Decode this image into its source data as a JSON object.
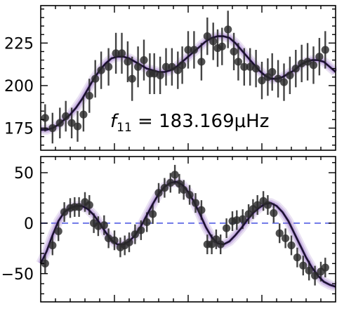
{
  "chart_data": [
    {
      "type": "scatter",
      "panel": "top",
      "annotation": {
        "symbol": "f",
        "subscript": "11",
        "text": " = 183.169μHz"
      },
      "xlim": [
        0,
        1
      ],
      "ylim": [
        162,
        247
      ],
      "ytick_values": [
        175,
        200,
        225
      ],
      "ytick_labels": [
        "175",
        "200",
        "225"
      ],
      "grid": false,
      "series": [
        {
          "kind": "points",
          "color": "#2b2b2b",
          "x": [
            0.015,
            0.04,
            0.065,
            0.085,
            0.105,
            0.125,
            0.145,
            0.165,
            0.185,
            0.205,
            0.23,
            0.255,
            0.275,
            0.295,
            0.31,
            0.33,
            0.35,
            0.37,
            0.385,
            0.405,
            0.425,
            0.445,
            0.465,
            0.48,
            0.5,
            0.52,
            0.545,
            0.565,
            0.585,
            0.6,
            0.615,
            0.635,
            0.655,
            0.67,
            0.69,
            0.71,
            0.73,
            0.75,
            0.77,
            0.785,
            0.805,
            0.825,
            0.845,
            0.865,
            0.885,
            0.905,
            0.925,
            0.945,
            0.965
          ],
          "y": [
            181,
            175,
            178,
            182,
            178,
            176,
            183,
            194,
            204,
            209,
            211,
            219,
            219,
            214,
            204,
            211,
            215,
            207,
            207,
            206,
            211,
            211,
            209,
            212,
            221,
            221,
            214,
            229,
            226,
            222,
            223,
            233,
            220,
            214,
            211,
            211,
            210,
            203,
            205,
            208,
            204,
            202,
            206,
            210,
            213,
            214,
            212,
            217,
            221
          ],
          "yerr": [
            8,
            9,
            9,
            9,
            9,
            9,
            10,
            10,
            11,
            11,
            11,
            12,
            12,
            12,
            13,
            12,
            12,
            12,
            12,
            11,
            11,
            11,
            11,
            11,
            11,
            11,
            11,
            11,
            11,
            11,
            11,
            11,
            11,
            11,
            11,
            11,
            11,
            11,
            11,
            11,
            11,
            11,
            11,
            11,
            11,
            11,
            11,
            11,
            11
          ]
        },
        {
          "kind": "model",
          "color": "#1b1030",
          "band_color": "#8a5fbf",
          "x": [
            0,
            0.02,
            0.04,
            0.06,
            0.08,
            0.1,
            0.12,
            0.14,
            0.16,
            0.18,
            0.2,
            0.22,
            0.24,
            0.26,
            0.28,
            0.3,
            0.32,
            0.34,
            0.36,
            0.38,
            0.4,
            0.42,
            0.44,
            0.46,
            0.48,
            0.5,
            0.52,
            0.54,
            0.56,
            0.58,
            0.6,
            0.62,
            0.64,
            0.66,
            0.68,
            0.7,
            0.72,
            0.74,
            0.76,
            0.78,
            0.8,
            0.82,
            0.84,
            0.86,
            0.88,
            0.9,
            0.92,
            0.94,
            0.96,
            0.98,
            1.0
          ],
          "y": [
            174,
            174,
            175,
            177,
            180,
            183,
            187,
            192,
            198,
            204,
            209,
            213,
            216,
            217,
            217,
            216,
            214,
            212,
            210,
            209,
            208,
            208,
            209,
            211,
            214,
            217,
            220,
            223,
            226,
            228,
            229,
            229,
            228,
            225,
            221,
            217,
            213,
            209,
            206,
            204,
            204,
            205,
            207,
            209,
            212,
            214,
            215,
            215,
            214,
            211,
            208
          ]
        }
      ]
    },
    {
      "type": "scatter",
      "panel": "bottom",
      "xlim": [
        0,
        1
      ],
      "ylim": [
        -78,
        66
      ],
      "ytick_values": [
        -50,
        0,
        50
      ],
      "ytick_labels": [
        "−50",
        "0",
        "50"
      ],
      "reference_line": {
        "y": 0,
        "color": "#6f78e8",
        "style": "dashed"
      },
      "grid": false,
      "series": [
        {
          "kind": "points",
          "color": "#2b2b2b",
          "x": [
            0.015,
            0.04,
            0.06,
            0.08,
            0.1,
            0.115,
            0.13,
            0.15,
            0.165,
            0.18,
            0.195,
            0.215,
            0.23,
            0.25,
            0.27,
            0.285,
            0.3,
            0.32,
            0.34,
            0.36,
            0.38,
            0.4,
            0.42,
            0.44,
            0.455,
            0.47,
            0.485,
            0.505,
            0.525,
            0.545,
            0.565,
            0.58,
            0.595,
            0.61,
            0.63,
            0.65,
            0.665,
            0.685,
            0.705,
            0.72,
            0.735,
            0.755,
            0.77,
            0.79,
            0.81,
            0.83,
            0.85,
            0.87,
            0.89,
            0.91,
            0.93,
            0.95,
            0.965
          ],
          "y": [
            -40,
            -22,
            -8,
            11,
            15,
            16,
            16,
            21,
            18,
            0,
            -3,
            -2,
            -15,
            -17,
            -24,
            -22,
            -19,
            -11,
            -7,
            1,
            9,
            30,
            35,
            40,
            48,
            39,
            33,
            28,
            20,
            13,
            -21,
            -21,
            -16,
            -21,
            -5,
            2,
            3,
            4,
            9,
            14,
            18,
            22,
            18,
            10,
            -10,
            -15,
            -22,
            -34,
            -42,
            -47,
            -52,
            -48,
            -44
          ]
        },
        {
          "kind": "model",
          "color": "#1b1030",
          "band_color": "#8a5fbf",
          "x": [
            0,
            0.02,
            0.04,
            0.06,
            0.08,
            0.1,
            0.12,
            0.14,
            0.16,
            0.18,
            0.2,
            0.22,
            0.24,
            0.26,
            0.28,
            0.3,
            0.32,
            0.34,
            0.36,
            0.38,
            0.4,
            0.42,
            0.44,
            0.46,
            0.48,
            0.5,
            0.52,
            0.54,
            0.56,
            0.58,
            0.6,
            0.62,
            0.64,
            0.66,
            0.68,
            0.7,
            0.72,
            0.74,
            0.76,
            0.78,
            0.8,
            0.82,
            0.84,
            0.86,
            0.88,
            0.9,
            0.92,
            0.94,
            0.96,
            0.98,
            1.0
          ],
          "y": [
            -40,
            -28,
            -12,
            2,
            11,
            15,
            17,
            17,
            14,
            8,
            0,
            -9,
            -17,
            -21,
            -21,
            -18,
            -12,
            -3,
            8,
            19,
            29,
            36,
            40,
            41,
            38,
            31,
            21,
            9,
            -4,
            -14,
            -20,
            -21,
            -18,
            -12,
            -5,
            3,
            10,
            15,
            19,
            20,
            17,
            11,
            2,
            -10,
            -22,
            -34,
            -44,
            -52,
            -58,
            -61,
            -63
          ]
        }
      ]
    }
  ]
}
